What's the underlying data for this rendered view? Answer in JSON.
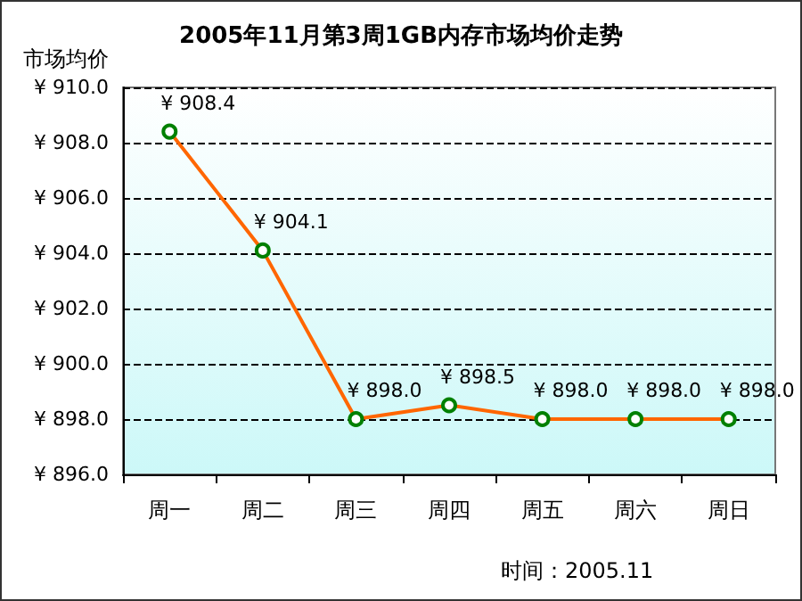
{
  "chart_data": {
    "type": "line",
    "title": "2005年11月第3周1GB内存市场均价走势",
    "ylabel": "市场均价",
    "categories": [
      "周一",
      "周二",
      "周三",
      "周四",
      "周五",
      "周六",
      "周日"
    ],
    "series": [
      {
        "color": "#ff6600",
        "values": [
          908.4,
          904.1,
          898.0,
          898.5,
          898.0,
          898.0,
          898.0
        ],
        "value_labels": [
          "¥ 908.4",
          "¥ 904.1",
          "¥ 898.0",
          "¥ 898.5",
          "¥ 898.0",
          "¥ 898.0",
          "¥ 898.0"
        ]
      }
    ],
    "ylim": [
      896,
      910
    ],
    "yticks": [
      {
        "value": 896,
        "label": "¥ 896.0"
      },
      {
        "value": 898,
        "label": "¥ 898.0"
      },
      {
        "value": 900,
        "label": "¥ 900.0"
      },
      {
        "value": 902,
        "label": "¥ 902.0"
      },
      {
        "value": 904,
        "label": "¥ 904.0"
      },
      {
        "value": 906,
        "label": "¥ 906.0"
      },
      {
        "value": 908,
        "label": "¥ 908.0"
      },
      {
        "value": 910,
        "label": "¥ 910.0"
      }
    ],
    "grid": "y",
    "marker": "circle",
    "line_style": "solid",
    "annotations": [
      "时间：2005.11"
    ]
  }
}
